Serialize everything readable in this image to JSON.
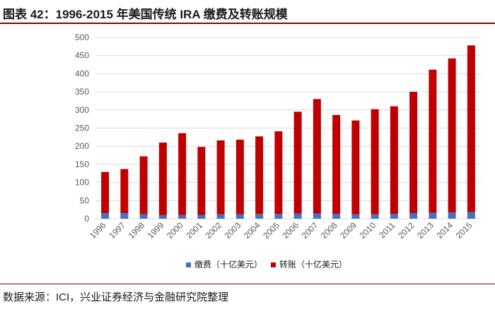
{
  "title": "图表 42：1996-2015 年美国传统 IRA 缴费及转账规模",
  "source": "数据来源：ICI，兴业证券经济与金融研究院整理",
  "chart_data": {
    "type": "bar",
    "stacked": true,
    "categories": [
      "1996",
      "1997",
      "1998",
      "1999",
      "2000",
      "2001",
      "2002",
      "2003",
      "2004",
      "2005",
      "2006",
      "2007",
      "2008",
      "2009",
      "2010",
      "2011",
      "2012",
      "2013",
      "2014",
      "2015"
    ],
    "series": [
      {
        "name": "缴费（十亿美元）",
        "color": "#4472c4",
        "values": [
          15,
          15,
          12,
          10,
          10,
          10,
          12,
          12,
          13,
          13,
          14,
          14,
          13,
          12,
          12,
          13,
          15,
          16,
          17,
          18
        ]
      },
      {
        "name": "转账（十亿美元）",
        "color": "#c00000",
        "values": [
          114,
          122,
          160,
          200,
          226,
          188,
          204,
          206,
          214,
          228,
          281,
          316,
          273,
          259,
          290,
          297,
          335,
          395,
          425,
          460
        ]
      }
    ],
    "yticks": [
      0,
      50,
      100,
      150,
      200,
      250,
      300,
      350,
      400,
      450,
      500
    ],
    "ylim": [
      0,
      500
    ],
    "grid": true,
    "legend": "bottom"
  }
}
